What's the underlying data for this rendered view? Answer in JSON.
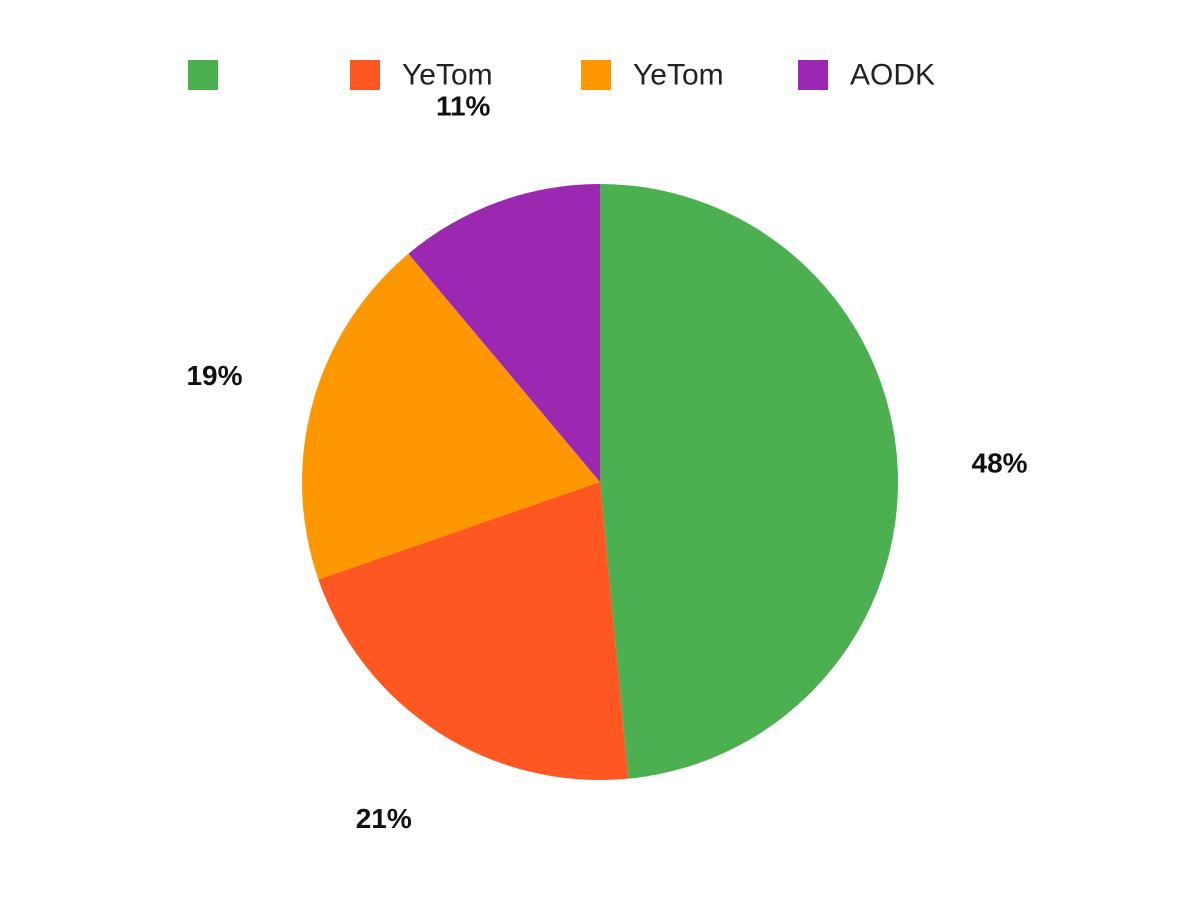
{
  "chart_data": {
    "type": "pie",
    "start_angle_deg": 0,
    "direction": "clockwise",
    "legend_position": "top",
    "slices": [
      {
        "label": "",
        "value": 48,
        "value_label": "48%",
        "color": "#4CAF50"
      },
      {
        "label": "YeTom",
        "value": 21,
        "value_label": "21%",
        "color": "#FF5722"
      },
      {
        "label": "YeTom",
        "value": 19,
        "value_label": "19%",
        "color": "#FF9800"
      },
      {
        "label": "AODK",
        "value": 11,
        "value_label": "11%",
        "color": "#9C27B0"
      }
    ]
  }
}
